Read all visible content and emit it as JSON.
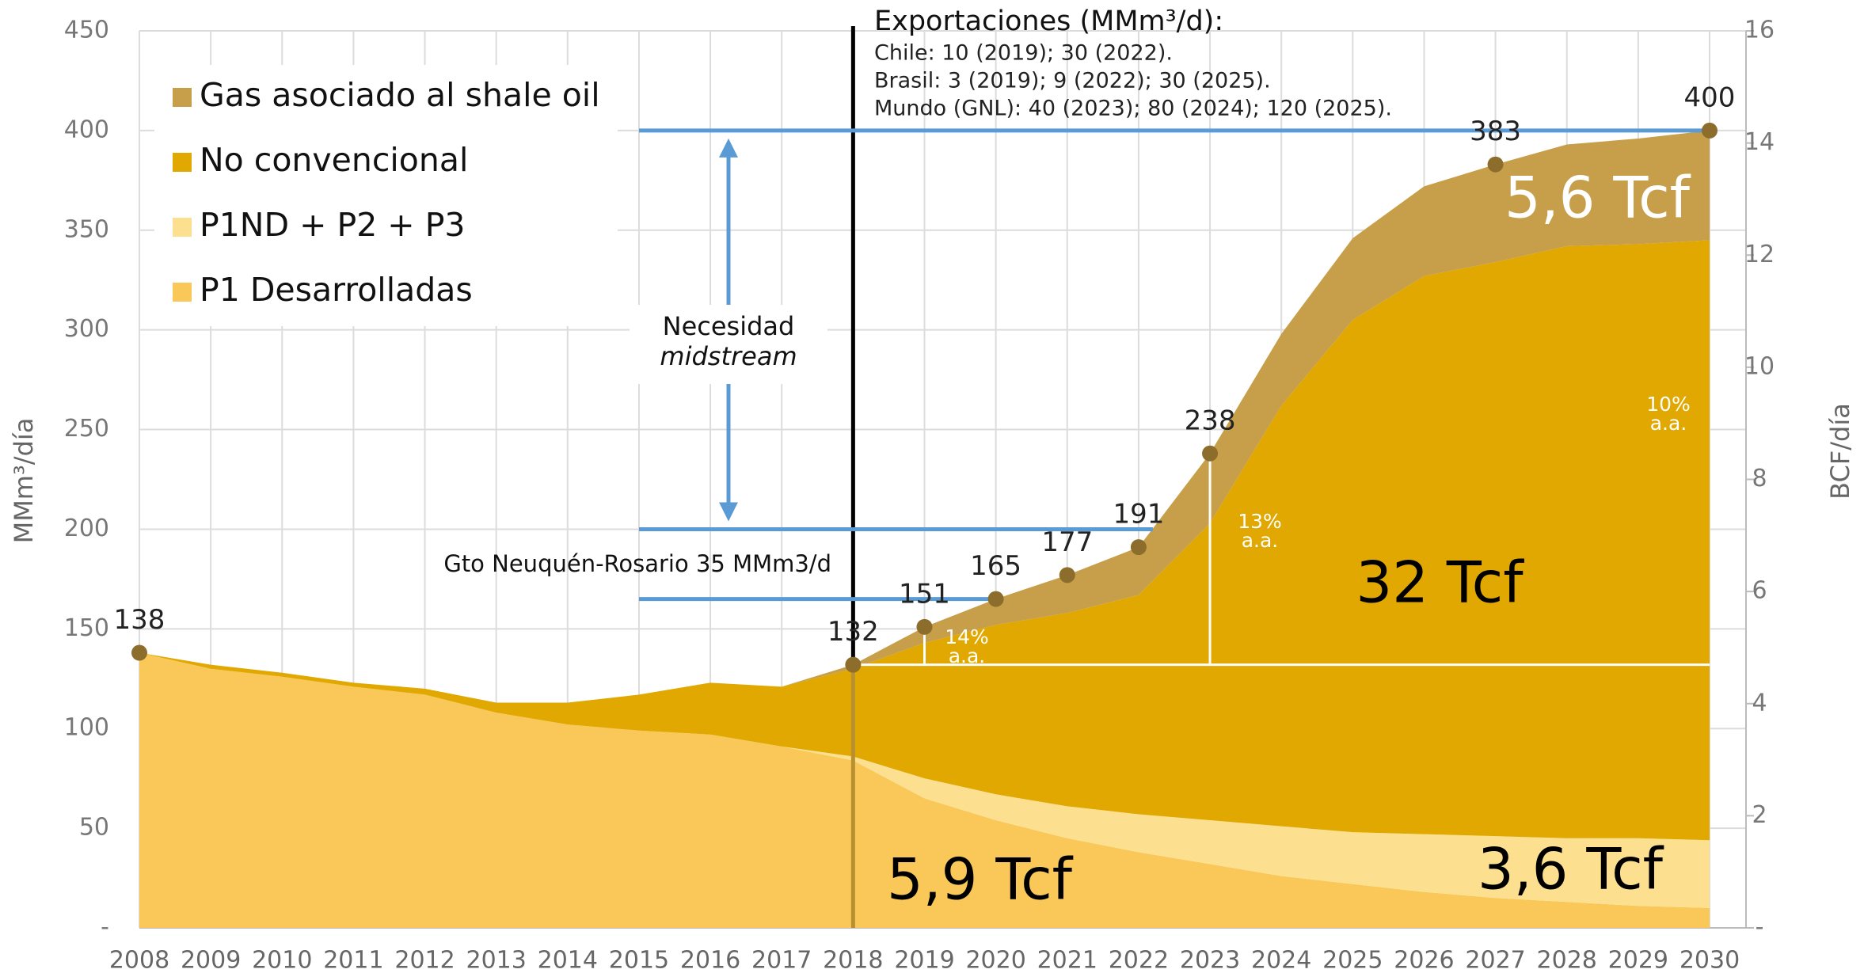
{
  "chart_data": {
    "type": "stacked_area",
    "categories": [
      "2008",
      "2009",
      "2010",
      "2011",
      "2012",
      "2013",
      "2014",
      "2015",
      "2016",
      "2017",
      "2018",
      "2019",
      "2020",
      "2021",
      "2022",
      "2023",
      "2024",
      "2025",
      "2026",
      "2027",
      "2028",
      "2029",
      "2030"
    ],
    "series": [
      {
        "name": "P1 Desarrolladas",
        "color": "#f9c858",
        "values": [
          138,
          130,
          126,
          121,
          117,
          108,
          102,
          99,
          97,
          91,
          84,
          65,
          54,
          45,
          38,
          32,
          26,
          22,
          18,
          15,
          13,
          11,
          10
        ]
      },
      {
        "name": "P1ND + P2 + P3",
        "color": "#fde08f",
        "values": [
          0,
          0,
          0,
          0,
          0,
          0,
          0,
          0,
          0,
          0,
          2,
          10,
          13,
          16,
          19,
          22,
          25,
          26,
          29,
          31,
          32,
          34,
          34
        ]
      },
      {
        "name": "No convencional",
        "color": "#e0a800",
        "values": [
          0,
          2,
          2,
          2,
          3,
          5,
          11,
          18,
          26,
          30,
          44,
          68,
          85,
          97,
          110,
          149,
          211,
          257,
          280,
          288,
          297,
          298,
          301
        ]
      },
      {
        "name": "Gas asociado al shale oil",
        "color": "#c79f4a",
        "values": [
          0,
          0,
          0,
          0,
          0,
          0,
          0,
          0,
          0,
          0,
          2,
          8,
          13,
          19,
          24,
          35,
          36,
          41,
          45,
          49,
          51,
          53,
          55
        ]
      }
    ],
    "ylim": [
      0,
      450
    ],
    "yticks": [
      {
        "value": 0,
        "label": "-"
      },
      50,
      100,
      150,
      200,
      250,
      300,
      350,
      400,
      450
    ],
    "y2lim": [
      0,
      16
    ],
    "y2ticks": [
      {
        "value": 0,
        "label": "-"
      },
      2,
      4,
      6,
      8,
      10,
      12,
      14,
      16
    ],
    "ylabel": "MMm³/día",
    "y2label": "BCF/día",
    "grid": true,
    "legend": "upper left",
    "markers": [
      {
        "category": "2008",
        "value": 138
      },
      {
        "category": "2018",
        "value": 132
      },
      {
        "category": "2019",
        "value": 151
      },
      {
        "category": "2020",
        "value": 165
      },
      {
        "category": "2021",
        "value": 177
      },
      {
        "category": "2022",
        "value": 191
      },
      {
        "category": "2023",
        "value": 238
      },
      {
        "category": "2027",
        "value": 383
      },
      {
        "category": "2030",
        "value": 400
      }
    ],
    "marker_color": "#8c6d2c",
    "reference_lines": [
      {
        "value": 400
      },
      {
        "value": 200
      },
      {
        "value": 165
      }
    ],
    "reference_color": "#5b9bd5",
    "exports": {
      "title": "Exportaciones (MMm³/d):",
      "lines": [
        "Chile: 10 (2019); 30 (2022).",
        "Brasil: 3 (2019); 9 (2022); 30 (2025).",
        "Mundo (GNL): 40 (2023); 80 (2024); 120 (2025)."
      ]
    },
    "midstream_label": [
      "Necesidad",
      "midstream"
    ],
    "pipeline_label": "Gto Neuquén-Rosario 35 MMm3/d",
    "growth_labels": [
      {
        "rate": "14%",
        "unit": "a.a."
      },
      {
        "rate": "13%",
        "unit": "a.a."
      },
      {
        "rate": "10%",
        "unit": "a.a."
      }
    ],
    "volume_labels": [
      "5,6 Tcf",
      "32 Tcf",
      "3,6 Tcf",
      "5,9 Tcf"
    ]
  }
}
